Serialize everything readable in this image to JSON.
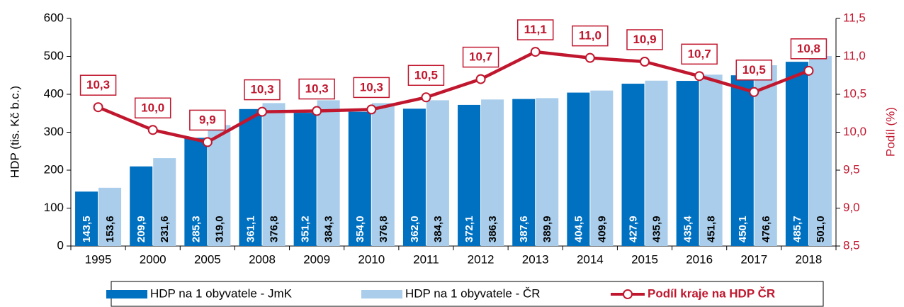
{
  "chart_data": {
    "type": "bar",
    "y_label": "HDP (tis. Kč b.c.)",
    "y2_label": "Podíl (%)",
    "categories": [
      "1995",
      "2000",
      "2005",
      "2008",
      "2009",
      "2010",
      "2011",
      "2012",
      "2013",
      "2014",
      "2015",
      "2016",
      "2017",
      "2018"
    ],
    "ylim": [
      0,
      600
    ],
    "yticks": [
      0,
      100,
      200,
      300,
      400,
      500,
      600
    ],
    "y2lim": [
      8.5,
      11.5
    ],
    "y2ticks": [
      {
        "value": 8.5,
        "label": "8,5"
      },
      {
        "value": 9.0,
        "label": "9,0"
      },
      {
        "value": 9.5,
        "label": "9,5"
      },
      {
        "value": 10.0,
        "label": "10,0"
      },
      {
        "value": 10.5,
        "label": "10,5"
      },
      {
        "value": 11.0,
        "label": "11,0"
      },
      {
        "value": 11.5,
        "label": "11,5"
      }
    ],
    "series": [
      {
        "name": "HDP na 1 obyvatele - JmK",
        "type": "bar",
        "color": "#0070c0",
        "values": [
          143.5,
          209.9,
          285.3,
          361.1,
          351.2,
          354.0,
          362.0,
          372.1,
          387.6,
          404.5,
          427.9,
          435.4,
          450.1,
          485.7
        ],
        "value_labels": [
          "143,5",
          "209,9",
          "285,3",
          "361,1",
          "351,2",
          "354,0",
          "362,0",
          "372,1",
          "387,6",
          "404,5",
          "427,9",
          "435,4",
          "450,1",
          "485,7"
        ]
      },
      {
        "name": "HDP na 1 obyvatele - ČR",
        "type": "bar",
        "color": "#a9cdea",
        "values": [
          153.6,
          231.6,
          319.0,
          376.8,
          384.3,
          376.8,
          384.3,
          386.3,
          389.9,
          409.9,
          435.9,
          451.8,
          476.6,
          501.0
        ],
        "value_labels": [
          "153,6",
          "231,6",
          "319,0",
          "376,8",
          "384,3",
          "376,8",
          "384,3",
          "386,3",
          "389,9",
          "409,9",
          "435,9",
          "451,8",
          "476,6",
          "501,0"
        ]
      },
      {
        "name": "Podíl kraje na HDP ČR",
        "type": "line",
        "axis": "y2",
        "color": "#c0172e",
        "values": [
          10.33,
          10.03,
          9.87,
          10.27,
          10.28,
          10.3,
          10.46,
          10.7,
          11.06,
          10.98,
          10.93,
          10.74,
          10.53,
          10.81
        ],
        "value_labels": [
          "10,3",
          "10,0",
          "9,9",
          "10,3",
          "10,3",
          "10,3",
          "10,5",
          "10,7",
          "11,1",
          "11,0",
          "10,9",
          "10,7",
          "10,5",
          "10,8"
        ]
      }
    ]
  }
}
